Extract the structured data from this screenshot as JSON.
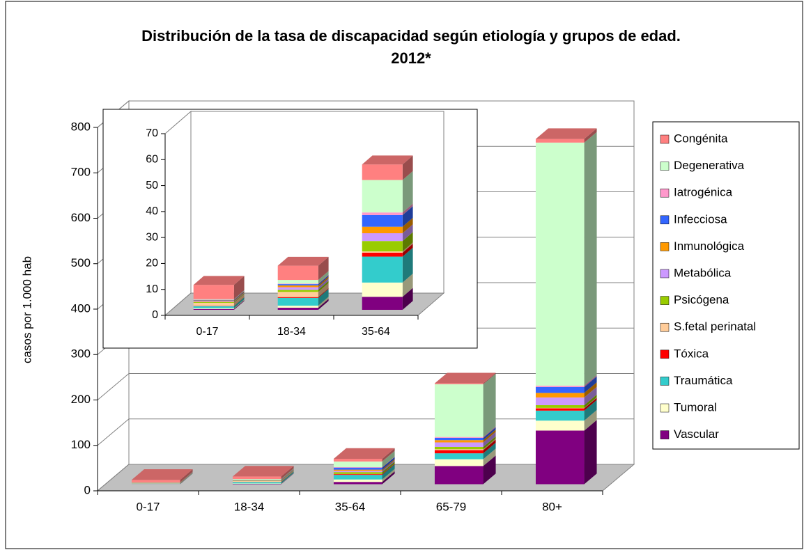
{
  "chart_data": [
    {
      "type": "bar",
      "stacked": true,
      "title": "Distribución de la tasa de discapacidad según etiología y grupos de edad. 2012*",
      "y_label": "casos por 1.000 hab",
      "categories": [
        "0-17",
        "18-34",
        "35-64",
        "65-79",
        "80+"
      ],
      "ylim": [
        0,
        800
      ],
      "yticks": [
        0,
        100,
        200,
        300,
        400,
        500,
        600,
        700,
        800
      ],
      "grid": true,
      "legend": "right",
      "series": [
        {
          "name": "Vascular",
          "color": "#800080",
          "values": [
            0.3,
            0.8,
            5,
            40,
            118
          ]
        },
        {
          "name": "Tumoral",
          "color": "#ffffcc",
          "values": [
            0.3,
            0.8,
            5.5,
            15,
            22
          ]
        },
        {
          "name": "Traumática",
          "color": "#33cccc",
          "values": [
            0.8,
            3,
            10,
            13,
            22
          ]
        },
        {
          "name": "Tóxica",
          "color": "#ff0000",
          "values": [
            0.1,
            0.3,
            1.5,
            7,
            5
          ]
        },
        {
          "name": "S.fetal perinatal",
          "color": "#ffcc99",
          "values": [
            1.2,
            2,
            0.5,
            2,
            1
          ]
        },
        {
          "name": "Psicógena",
          "color": "#99cc00",
          "values": [
            0.3,
            0.8,
            4,
            5,
            6
          ]
        },
        {
          "name": "Metabólica",
          "color": "#cc99ff",
          "values": [
            0.3,
            1,
            3,
            10,
            17
          ]
        },
        {
          "name": "Inmunológica",
          "color": "#ff9900",
          "values": [
            0.3,
            0.7,
            2.5,
            5,
            10
          ]
        },
        {
          "name": "Infecciosa",
          "color": "#3366ff",
          "values": [
            0.2,
            0.5,
            4.5,
            5,
            13
          ]
        },
        {
          "name": "Iatrogénica",
          "color": "#ff99cc",
          "values": [
            0.1,
            0.2,
            1,
            2,
            3
          ]
        },
        {
          "name": "Degenerativa",
          "color": "#ccffcc",
          "values": [
            0.2,
            1.4,
            12.5,
            116,
            535
          ]
        },
        {
          "name": "Congénita",
          "color": "#ff8080",
          "values": [
            5.5,
            5.5,
            6,
            2,
            8
          ]
        }
      ]
    },
    {
      "type": "bar",
      "stacked": true,
      "categories": [
        "0-17",
        "18-34",
        "35-64"
      ],
      "ylim": [
        0,
        70
      ],
      "yticks": [
        0,
        10,
        20,
        30,
        40,
        50,
        60,
        70
      ],
      "grid": false,
      "series": [
        {
          "color": "#800080",
          "values": [
            0.3,
            0.8,
            5
          ]
        },
        {
          "color": "#ffffcc",
          "values": [
            0.3,
            0.8,
            5.5
          ]
        },
        {
          "color": "#33cccc",
          "values": [
            0.8,
            3,
            10
          ]
        },
        {
          "color": "#ff0000",
          "values": [
            0.1,
            0.3,
            1.5
          ]
        },
        {
          "color": "#ffcc99",
          "values": [
            1.2,
            2,
            0.5
          ]
        },
        {
          "color": "#99cc00",
          "values": [
            0.3,
            0.8,
            4
          ]
        },
        {
          "color": "#cc99ff",
          "values": [
            0.3,
            1,
            3
          ]
        },
        {
          "color": "#ff9900",
          "values": [
            0.3,
            0.7,
            2.5
          ]
        },
        {
          "color": "#3366ff",
          "values": [
            0.2,
            0.5,
            4.5
          ]
        },
        {
          "color": "#ff99cc",
          "values": [
            0.1,
            0.2,
            1
          ]
        },
        {
          "color": "#ccffcc",
          "values": [
            0.2,
            1.4,
            12.5
          ]
        },
        {
          "color": "#ff8080",
          "values": [
            5.5,
            5.5,
            6
          ]
        }
      ]
    }
  ]
}
